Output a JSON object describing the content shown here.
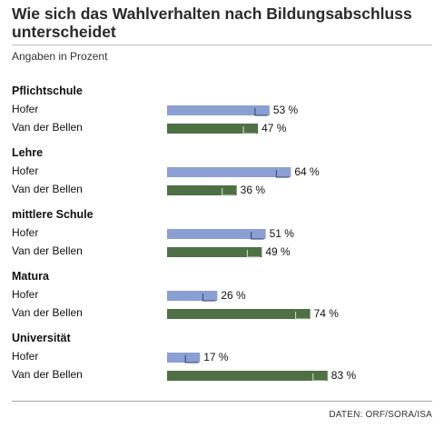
{
  "header": {
    "title": "Wie sich das Wahlverhalten nach Bildungsabschluss unterscheidet",
    "subtitle": "Angaben in Prozent"
  },
  "footer": {
    "source": "DATEN: ORF/SORA/ISA"
  },
  "colors": {
    "hofer": "#8c9fd4",
    "vdb": "#4f7045"
  },
  "chart_data": {
    "type": "bar",
    "orientation": "horizontal",
    "title": "Wie sich das Wahlverhalten nach Bildungsabschluss unterscheidet",
    "subtitle": "Angaben in Prozent",
    "unit": "%",
    "xlim": [
      0,
      100
    ],
    "grid": false,
    "legend": "none",
    "categories": [
      "Pflichtschule",
      "Lehre",
      "mittlere Schule",
      "Matura",
      "Universität"
    ],
    "series": [
      {
        "name": "Hofer",
        "values": [
          53,
          64,
          51,
          26,
          17
        ]
      },
      {
        "name": "Van der Bellen",
        "values": [
          47,
          36,
          49,
          74,
          83
        ]
      }
    ]
  }
}
